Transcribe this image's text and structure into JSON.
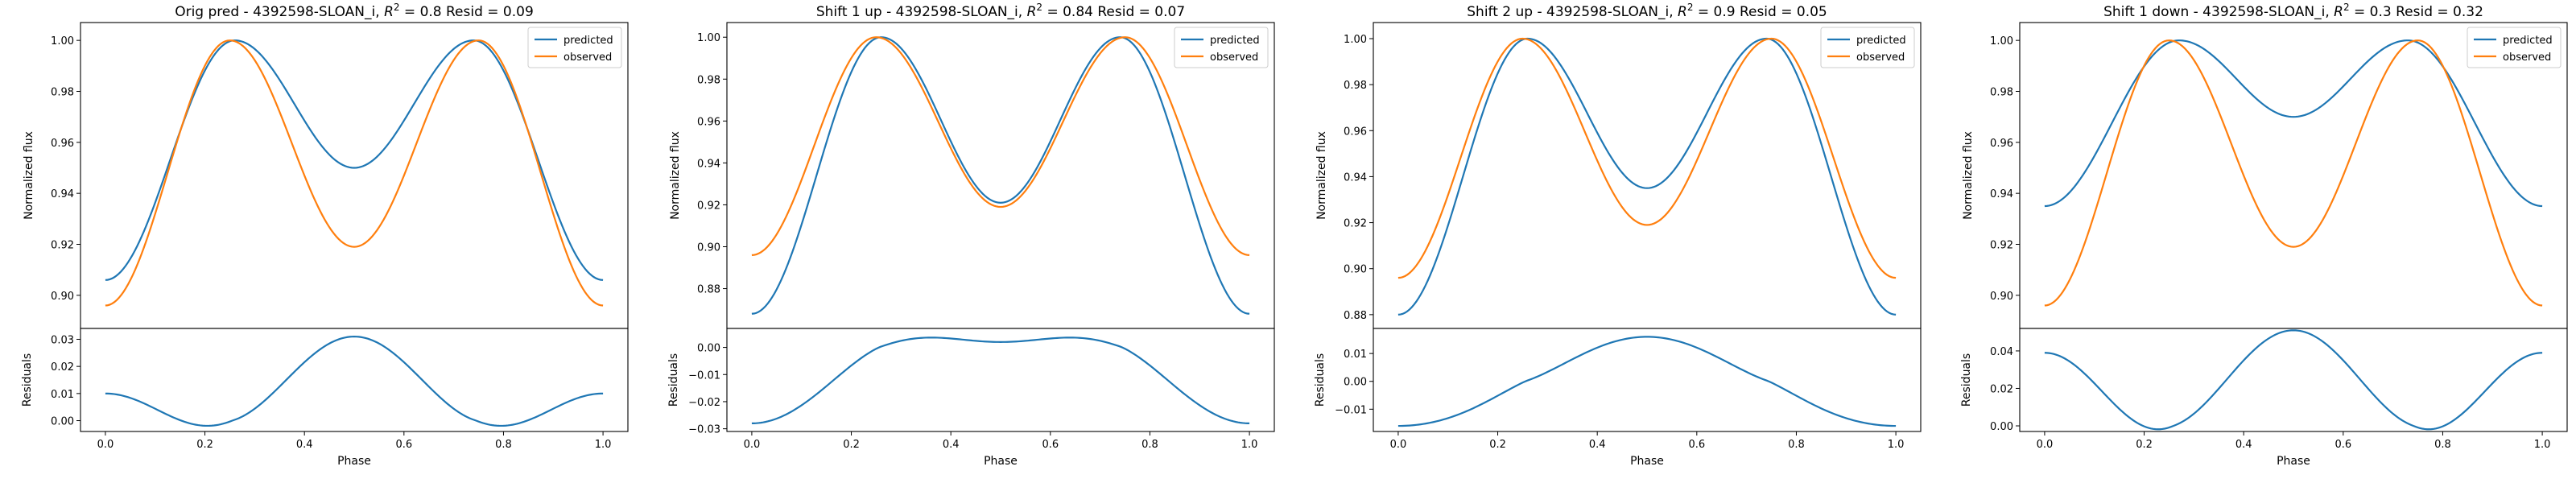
{
  "chart_data": [
    {
      "type": "line",
      "title": "Orig pred - 4392598-SLOAN_i, R² = 0.8 Resid = 0.09",
      "title_parts": {
        "prefix": "Orig pred - 4392598-SLOAN_i, ",
        "r2_symbol": "R",
        "r2_sup": "2",
        "suffix": " = 0.8 Resid = 0.09"
      },
      "xlabel": "Phase",
      "ylabel": "Normalized flux",
      "resid_ylabel": "Residuals",
      "xlim": [
        -0.05,
        1.05
      ],
      "xticks": [
        0.0,
        0.2,
        0.4,
        0.6,
        0.8,
        1.0
      ],
      "xtick_labels": [
        "0.0",
        "0.2",
        "0.4",
        "0.6",
        "0.8",
        "1.0"
      ],
      "ylim": [
        0.887,
        1.007
      ],
      "yticks": [
        0.9,
        0.92,
        0.94,
        0.96,
        0.98,
        1.0
      ],
      "ytick_labels": [
        "0.90",
        "0.92",
        "0.94",
        "0.96",
        "0.98",
        "1.00"
      ],
      "resid_ylim": [
        -0.004,
        0.034
      ],
      "resid_yticks": [
        0.0,
        0.01,
        0.02,
        0.03
      ],
      "resid_ytick_labels": [
        "0.00",
        "0.01",
        "0.02",
        "0.03"
      ],
      "legend": "top-right",
      "series": [
        {
          "name": "predicted",
          "color": "#1f77b4",
          "min_value": 0.906,
          "mid_value": 0.95,
          "peak_value": 1.0,
          "peak_phase": 0.26
        },
        {
          "name": "observed",
          "color": "#ff7f0e",
          "min_value": 0.896,
          "mid_value": 0.919,
          "peak_value": 1.0,
          "peak_phase": 0.25
        }
      ]
    },
    {
      "type": "line",
      "title": "Shift 1 up - 4392598-SLOAN_i, R² = 0.84 Resid = 0.07",
      "title_parts": {
        "prefix": "Shift 1 up - 4392598-SLOAN_i, ",
        "r2_symbol": "R",
        "r2_sup": "2",
        "suffix": " = 0.84 Resid = 0.07"
      },
      "xlabel": "Phase",
      "ylabel": "Normalized flux",
      "resid_ylabel": "Residuals",
      "xlim": [
        -0.05,
        1.05
      ],
      "xticks": [
        0.0,
        0.2,
        0.4,
        0.6,
        0.8,
        1.0
      ],
      "xtick_labels": [
        "0.0",
        "0.2",
        "0.4",
        "0.6",
        "0.8",
        "1.0"
      ],
      "ylim": [
        0.861,
        1.007
      ],
      "yticks": [
        0.88,
        0.9,
        0.92,
        0.94,
        0.96,
        0.98,
        1.0
      ],
      "ytick_labels": [
        "0.88",
        "0.90",
        "0.92",
        "0.94",
        "0.96",
        "0.98",
        "1.00"
      ],
      "resid_ylim": [
        -0.031,
        0.007
      ],
      "resid_yticks": [
        -0.03,
        -0.02,
        -0.01,
        0.0
      ],
      "resid_ytick_labels": [
        "−0.03",
        "−0.02",
        "−0.01",
        "0.00"
      ],
      "legend": "top-right",
      "series": [
        {
          "name": "predicted",
          "color": "#1f77b4",
          "min_value": 0.868,
          "mid_value": 0.921,
          "peak_value": 1.0,
          "peak_phase": 0.26
        },
        {
          "name": "observed",
          "color": "#ff7f0e",
          "min_value": 0.896,
          "mid_value": 0.919,
          "peak_value": 1.0,
          "peak_phase": 0.25
        }
      ]
    },
    {
      "type": "line",
      "title": "Shift 2 up - 4392598-SLOAN_i, R² = 0.9 Resid = 0.05",
      "title_parts": {
        "prefix": "Shift 2 up - 4392598-SLOAN_i, ",
        "r2_symbol": "R",
        "r2_sup": "2",
        "suffix": " = 0.9 Resid = 0.05"
      },
      "xlabel": "Phase",
      "ylabel": "Normalized flux",
      "resid_ylabel": "Residuals",
      "xlim": [
        -0.05,
        1.05
      ],
      "xticks": [
        0.0,
        0.2,
        0.4,
        0.6,
        0.8,
        1.0
      ],
      "xtick_labels": [
        "0.0",
        "0.2",
        "0.4",
        "0.6",
        "0.8",
        "1.0"
      ],
      "ylim": [
        0.874,
        1.007
      ],
      "yticks": [
        0.88,
        0.9,
        0.92,
        0.94,
        0.96,
        0.98,
        1.0
      ],
      "ytick_labels": [
        "0.88",
        "0.90",
        "0.92",
        "0.94",
        "0.96",
        "0.98",
        "1.00"
      ],
      "resid_ylim": [
        -0.018,
        0.019
      ],
      "resid_yticks": [
        -0.01,
        0.0,
        0.01
      ],
      "resid_ytick_labels": [
        "−0.01",
        "0.00",
        "0.01"
      ],
      "legend": "top-right",
      "series": [
        {
          "name": "predicted",
          "color": "#1f77b4",
          "min_value": 0.88,
          "mid_value": 0.935,
          "peak_value": 1.0,
          "peak_phase": 0.26
        },
        {
          "name": "observed",
          "color": "#ff7f0e",
          "min_value": 0.896,
          "mid_value": 0.919,
          "peak_value": 1.0,
          "peak_phase": 0.25
        }
      ]
    },
    {
      "type": "line",
      "title": "Shift 1 down - 4392598-SLOAN_i, R² = 0.3 Resid = 0.32",
      "title_parts": {
        "prefix": "Shift 1 down - 4392598-SLOAN_i, ",
        "r2_symbol": "R",
        "r2_sup": "2",
        "suffix": " = 0.3 Resid = 0.32"
      },
      "xlabel": "Phase",
      "ylabel": "Normalized flux",
      "resid_ylabel": "Residuals",
      "xlim": [
        -0.05,
        1.05
      ],
      "xticks": [
        0.0,
        0.2,
        0.4,
        0.6,
        0.8,
        1.0
      ],
      "xtick_labels": [
        "0.0",
        "0.2",
        "0.4",
        "0.6",
        "0.8",
        "1.0"
      ],
      "ylim": [
        0.887,
        1.007
      ],
      "yticks": [
        0.9,
        0.92,
        0.94,
        0.96,
        0.98,
        1.0
      ],
      "ytick_labels": [
        "0.90",
        "0.92",
        "0.94",
        "0.96",
        "0.98",
        "1.00"
      ],
      "resid_ylim": [
        -0.003,
        0.052
      ],
      "resid_yticks": [
        0.0,
        0.02,
        0.04
      ],
      "resid_ytick_labels": [
        "0.00",
        "0.02",
        "0.04"
      ],
      "legend": "top-right",
      "series": [
        {
          "name": "predicted",
          "color": "#1f77b4",
          "min_value": 0.935,
          "mid_value": 0.97,
          "peak_value": 1.0,
          "peak_phase": 0.27
        },
        {
          "name": "observed",
          "color": "#ff7f0e",
          "min_value": 0.896,
          "mid_value": 0.919,
          "peak_value": 1.0,
          "peak_phase": 0.25
        }
      ]
    }
  ]
}
